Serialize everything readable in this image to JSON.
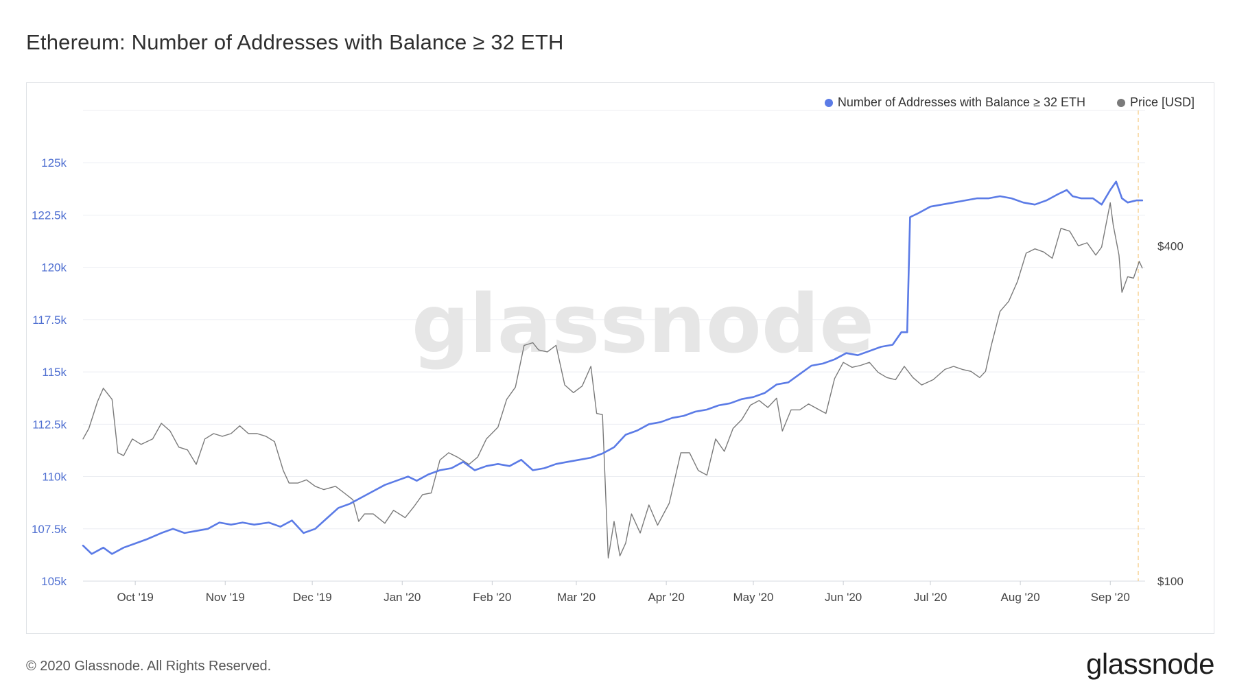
{
  "page": {
    "title": "Ethereum: Number of Addresses with Balance ≥ 32 ETH",
    "copyright": "© 2020 Glassnode. All Rights Reserved.",
    "logo_text": "glassnode",
    "watermark": "glassnode"
  },
  "colors": {
    "addresses": "#5b7be6",
    "price": "#7a7a7a",
    "left_axis_text": "#4f6fd1",
    "grid": "#eceef2",
    "cursor_line": "#f5c77b"
  },
  "chart_data": {
    "type": "line",
    "legend": [
      {
        "name": "Number of Addresses with Balance ≥ 32 ETH",
        "color": "#5b7be6"
      },
      {
        "name": "Price [USD]",
        "color": "#7a7a7a"
      }
    ],
    "legend_position": "top-right",
    "grid": true,
    "x_ticks": [
      "Oct '19",
      "Nov '19",
      "Dec '19",
      "Jan '20",
      "Feb '20",
      "Mar '20",
      "Apr '20",
      "May '20",
      "Jun '20",
      "Jul '20",
      "Aug '20",
      "Sep '20"
    ],
    "xlim": [
      "2019-09-13",
      "2020-09-13"
    ],
    "left_axis": {
      "ticks": [
        "105k",
        "107.5k",
        "110k",
        "112.5k",
        "115k",
        "117.5k",
        "120k",
        "122.5k",
        "125k"
      ],
      "range": [
        105000,
        127500
      ]
    },
    "right_axis": {
      "scale": "log",
      "ticks": [
        "$100",
        "$400"
      ],
      "tick_values": [
        100,
        400
      ],
      "range": [
        100,
        700
      ]
    },
    "series": [
      {
        "name": "Number of Addresses with Balance ≥ 32 ETH",
        "axis": "left",
        "points": [
          [
            "2019-09-13",
            106700
          ],
          [
            "2019-09-16",
            106300
          ],
          [
            "2019-09-20",
            106600
          ],
          [
            "2019-09-23",
            106300
          ],
          [
            "2019-09-27",
            106600
          ],
          [
            "2019-10-01",
            106800
          ],
          [
            "2019-10-05",
            107000
          ],
          [
            "2019-10-10",
            107300
          ],
          [
            "2019-10-14",
            107500
          ],
          [
            "2019-10-18",
            107300
          ],
          [
            "2019-10-22",
            107400
          ],
          [
            "2019-10-26",
            107500
          ],
          [
            "2019-10-30",
            107800
          ],
          [
            "2019-11-03",
            107700
          ],
          [
            "2019-11-07",
            107800
          ],
          [
            "2019-11-11",
            107700
          ],
          [
            "2019-11-16",
            107800
          ],
          [
            "2019-11-20",
            107600
          ],
          [
            "2019-11-24",
            107900
          ],
          [
            "2019-11-28",
            107300
          ],
          [
            "2019-12-02",
            107500
          ],
          [
            "2019-12-06",
            108000
          ],
          [
            "2019-12-10",
            108500
          ],
          [
            "2019-12-14",
            108700
          ],
          [
            "2019-12-18",
            109000
          ],
          [
            "2019-12-22",
            109300
          ],
          [
            "2019-12-26",
            109600
          ],
          [
            "2019-12-30",
            109800
          ],
          [
            "2020-01-03",
            110000
          ],
          [
            "2020-01-06",
            109800
          ],
          [
            "2020-01-10",
            110100
          ],
          [
            "2020-01-14",
            110300
          ],
          [
            "2020-01-18",
            110400
          ],
          [
            "2020-01-22",
            110700
          ],
          [
            "2020-01-26",
            110300
          ],
          [
            "2020-01-30",
            110500
          ],
          [
            "2020-02-03",
            110600
          ],
          [
            "2020-02-07",
            110500
          ],
          [
            "2020-02-11",
            110800
          ],
          [
            "2020-02-15",
            110300
          ],
          [
            "2020-02-19",
            110400
          ],
          [
            "2020-02-23",
            110600
          ],
          [
            "2020-02-27",
            110700
          ],
          [
            "2020-03-02",
            110800
          ],
          [
            "2020-03-06",
            110900
          ],
          [
            "2020-03-10",
            111100
          ],
          [
            "2020-03-14",
            111400
          ],
          [
            "2020-03-18",
            112000
          ],
          [
            "2020-03-22",
            112200
          ],
          [
            "2020-03-26",
            112500
          ],
          [
            "2020-03-30",
            112600
          ],
          [
            "2020-04-03",
            112800
          ],
          [
            "2020-04-07",
            112900
          ],
          [
            "2020-04-11",
            113100
          ],
          [
            "2020-04-15",
            113200
          ],
          [
            "2020-04-19",
            113400
          ],
          [
            "2020-04-23",
            113500
          ],
          [
            "2020-04-27",
            113700
          ],
          [
            "2020-05-01",
            113800
          ],
          [
            "2020-05-05",
            114000
          ],
          [
            "2020-05-09",
            114400
          ],
          [
            "2020-05-13",
            114500
          ],
          [
            "2020-05-17",
            114900
          ],
          [
            "2020-05-21",
            115300
          ],
          [
            "2020-05-25",
            115400
          ],
          [
            "2020-05-29",
            115600
          ],
          [
            "2020-06-02",
            115900
          ],
          [
            "2020-06-06",
            115800
          ],
          [
            "2020-06-10",
            116000
          ],
          [
            "2020-06-14",
            116200
          ],
          [
            "2020-06-18",
            116300
          ],
          [
            "2020-06-21",
            116900
          ],
          [
            "2020-06-23",
            116900
          ],
          [
            "2020-06-24",
            122400
          ],
          [
            "2020-06-27",
            122600
          ],
          [
            "2020-07-01",
            122900
          ],
          [
            "2020-07-05",
            123000
          ],
          [
            "2020-07-09",
            123100
          ],
          [
            "2020-07-13",
            123200
          ],
          [
            "2020-07-17",
            123300
          ],
          [
            "2020-07-21",
            123300
          ],
          [
            "2020-07-25",
            123400
          ],
          [
            "2020-07-29",
            123300
          ],
          [
            "2020-08-02",
            123100
          ],
          [
            "2020-08-06",
            123000
          ],
          [
            "2020-08-10",
            123200
          ],
          [
            "2020-08-14",
            123500
          ],
          [
            "2020-08-17",
            123700
          ],
          [
            "2020-08-19",
            123400
          ],
          [
            "2020-08-22",
            123300
          ],
          [
            "2020-08-26",
            123300
          ],
          [
            "2020-08-29",
            123000
          ],
          [
            "2020-09-01",
            123700
          ],
          [
            "2020-09-03",
            124100
          ],
          [
            "2020-09-05",
            123300
          ],
          [
            "2020-09-07",
            123100
          ],
          [
            "2020-09-10",
            123200
          ],
          [
            "2020-09-12",
            123200
          ]
        ]
      },
      {
        "name": "Price [USD]",
        "axis": "right",
        "points": [
          [
            "2019-09-13",
            180
          ],
          [
            "2019-09-15",
            188
          ],
          [
            "2019-09-18",
            210
          ],
          [
            "2019-09-20",
            222
          ],
          [
            "2019-09-23",
            212
          ],
          [
            "2019-09-25",
            170
          ],
          [
            "2019-09-27",
            168
          ],
          [
            "2019-09-30",
            180
          ],
          [
            "2019-10-03",
            176
          ],
          [
            "2019-10-07",
            180
          ],
          [
            "2019-10-10",
            192
          ],
          [
            "2019-10-13",
            186
          ],
          [
            "2019-10-16",
            174
          ],
          [
            "2019-10-19",
            172
          ],
          [
            "2019-10-22",
            162
          ],
          [
            "2019-10-25",
            180
          ],
          [
            "2019-10-28",
            184
          ],
          [
            "2019-10-31",
            182
          ],
          [
            "2019-11-03",
            184
          ],
          [
            "2019-11-06",
            190
          ],
          [
            "2019-11-09",
            184
          ],
          [
            "2019-11-12",
            184
          ],
          [
            "2019-11-15",
            182
          ],
          [
            "2019-11-18",
            178
          ],
          [
            "2019-11-21",
            158
          ],
          [
            "2019-11-23",
            150
          ],
          [
            "2019-11-26",
            150
          ],
          [
            "2019-11-29",
            152
          ],
          [
            "2019-12-02",
            148
          ],
          [
            "2019-12-05",
            146
          ],
          [
            "2019-12-09",
            148
          ],
          [
            "2019-12-12",
            144
          ],
          [
            "2019-12-15",
            140
          ],
          [
            "2019-12-17",
            128
          ],
          [
            "2019-12-19",
            132
          ],
          [
            "2019-12-22",
            132
          ],
          [
            "2019-12-26",
            127
          ],
          [
            "2019-12-29",
            134
          ],
          [
            "2020-01-02",
            130
          ],
          [
            "2020-01-05",
            136
          ],
          [
            "2020-01-08",
            143
          ],
          [
            "2020-01-11",
            144
          ],
          [
            "2020-01-14",
            165
          ],
          [
            "2020-01-17",
            170
          ],
          [
            "2020-01-20",
            167
          ],
          [
            "2020-01-24",
            162
          ],
          [
            "2020-01-27",
            167
          ],
          [
            "2020-01-30",
            180
          ],
          [
            "2020-02-03",
            189
          ],
          [
            "2020-02-06",
            212
          ],
          [
            "2020-02-09",
            223
          ],
          [
            "2020-02-12",
            265
          ],
          [
            "2020-02-15",
            268
          ],
          [
            "2020-02-17",
            260
          ],
          [
            "2020-02-20",
            258
          ],
          [
            "2020-02-23",
            265
          ],
          [
            "2020-02-26",
            225
          ],
          [
            "2020-02-29",
            218
          ],
          [
            "2020-03-03",
            224
          ],
          [
            "2020-03-06",
            243
          ],
          [
            "2020-03-08",
            200
          ],
          [
            "2020-03-10",
            199
          ],
          [
            "2020-03-12",
            110
          ],
          [
            "2020-03-14",
            128
          ],
          [
            "2020-03-16",
            111
          ],
          [
            "2020-03-18",
            117
          ],
          [
            "2020-03-20",
            132
          ],
          [
            "2020-03-23",
            122
          ],
          [
            "2020-03-26",
            137
          ],
          [
            "2020-03-29",
            126
          ],
          [
            "2020-04-02",
            138
          ],
          [
            "2020-04-06",
            170
          ],
          [
            "2020-04-09",
            170
          ],
          [
            "2020-04-12",
            158
          ],
          [
            "2020-04-15",
            155
          ],
          [
            "2020-04-18",
            180
          ],
          [
            "2020-04-21",
            171
          ],
          [
            "2020-04-24",
            188
          ],
          [
            "2020-04-27",
            195
          ],
          [
            "2020-04-30",
            207
          ],
          [
            "2020-05-03",
            211
          ],
          [
            "2020-05-06",
            205
          ],
          [
            "2020-05-09",
            213
          ],
          [
            "2020-05-11",
            186
          ],
          [
            "2020-05-14",
            203
          ],
          [
            "2020-05-17",
            203
          ],
          [
            "2020-05-20",
            208
          ],
          [
            "2020-05-23",
            204
          ],
          [
            "2020-05-26",
            200
          ],
          [
            "2020-05-29",
            231
          ],
          [
            "2020-06-01",
            247
          ],
          [
            "2020-06-04",
            242
          ],
          [
            "2020-06-07",
            244
          ],
          [
            "2020-06-10",
            247
          ],
          [
            "2020-06-13",
            237
          ],
          [
            "2020-06-16",
            232
          ],
          [
            "2020-06-19",
            230
          ],
          [
            "2020-06-22",
            243
          ],
          [
            "2020-06-25",
            232
          ],
          [
            "2020-06-28",
            225
          ],
          [
            "2020-07-02",
            230
          ],
          [
            "2020-07-06",
            240
          ],
          [
            "2020-07-09",
            243
          ],
          [
            "2020-07-12",
            240
          ],
          [
            "2020-07-15",
            238
          ],
          [
            "2020-07-18",
            232
          ],
          [
            "2020-07-20",
            238
          ],
          [
            "2020-07-22",
            265
          ],
          [
            "2020-07-25",
            305
          ],
          [
            "2020-07-28",
            318
          ],
          [
            "2020-07-31",
            345
          ],
          [
            "2020-08-03",
            388
          ],
          [
            "2020-08-06",
            395
          ],
          [
            "2020-08-09",
            390
          ],
          [
            "2020-08-12",
            380
          ],
          [
            "2020-08-15",
            430
          ],
          [
            "2020-08-18",
            425
          ],
          [
            "2020-08-21",
            400
          ],
          [
            "2020-08-24",
            405
          ],
          [
            "2020-08-27",
            385
          ],
          [
            "2020-08-29",
            398
          ],
          [
            "2020-09-01",
            478
          ],
          [
            "2020-09-02",
            436
          ],
          [
            "2020-09-04",
            385
          ],
          [
            "2020-09-05",
            330
          ],
          [
            "2020-09-07",
            352
          ],
          [
            "2020-09-09",
            350
          ],
          [
            "2020-09-11",
            375
          ],
          [
            "2020-09-12",
            365
          ]
        ]
      }
    ]
  }
}
